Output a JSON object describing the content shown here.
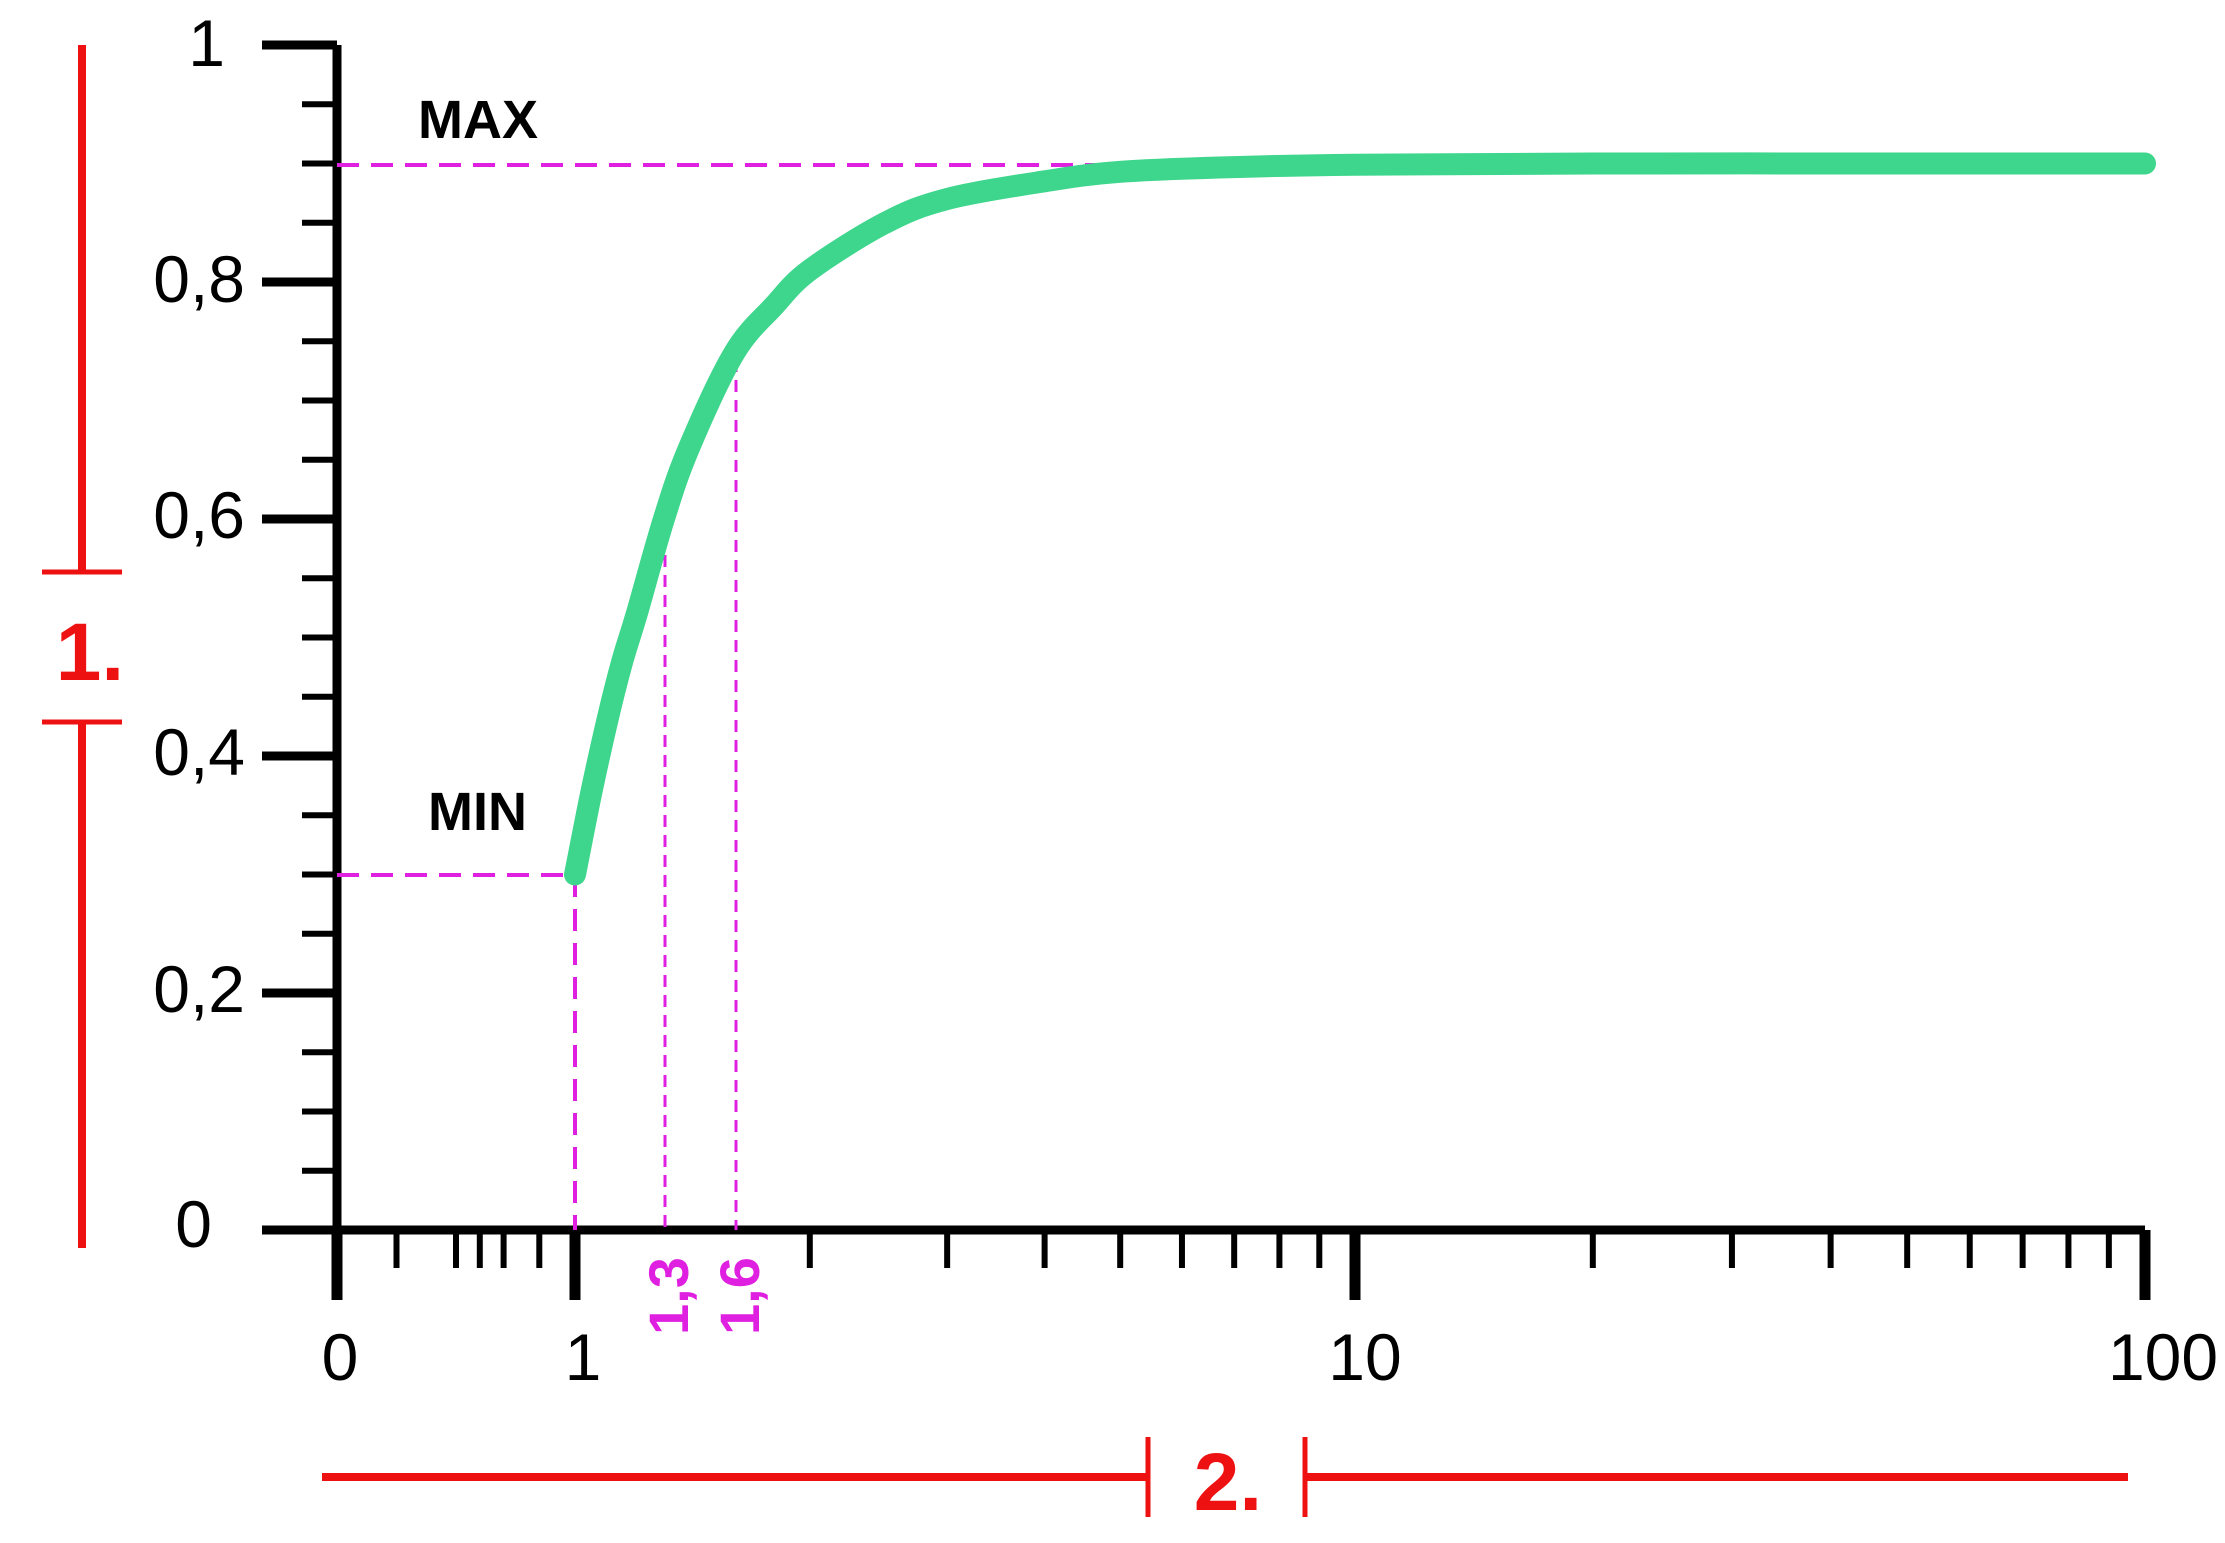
{
  "chart_data": {
    "type": "line",
    "xscale": "log",
    "xlim": [
      0,
      100
    ],
    "ylim": [
      0,
      1
    ],
    "x_tick_labels": [
      "0",
      "1",
      "10",
      "100"
    ],
    "y_tick_labels": [
      "0",
      "0,2",
      "0,4",
      "0,6",
      "0,8",
      "1"
    ],
    "y_ticks": [
      0,
      0.2,
      0.4,
      0.6,
      0.8,
      1.0
    ],
    "x_ticks": [
      0,
      1,
      10,
      100
    ],
    "series": [
      {
        "color": "#3dd68c",
        "points": [
          [
            1.0,
            0.3
          ],
          [
            1.05,
            0.37
          ],
          [
            1.1,
            0.43
          ],
          [
            1.15,
            0.48
          ],
          [
            1.2,
            0.52
          ],
          [
            1.3,
            0.6
          ],
          [
            1.4,
            0.66
          ],
          [
            1.6,
            0.74
          ],
          [
            1.8,
            0.78
          ],
          [
            2.0,
            0.81
          ],
          [
            2.5,
            0.85
          ],
          [
            3.0,
            0.87
          ],
          [
            4.0,
            0.885
          ],
          [
            5.0,
            0.893
          ],
          [
            7.0,
            0.897
          ],
          [
            10,
            0.899
          ],
          [
            20,
            0.9
          ],
          [
            50,
            0.9
          ],
          [
            100,
            0.9
          ]
        ]
      }
    ],
    "reference_levels": [
      {
        "label": "MAX",
        "y": 0.9
      },
      {
        "label": "MIN",
        "y": 0.3
      }
    ],
    "markers": [
      {
        "label": "1,3",
        "x": 1.3,
        "y": 0.62
      },
      {
        "label": "1,6",
        "x": 1.6,
        "y": 0.74
      }
    ],
    "min_point": {
      "x": 1.0,
      "y": 0.3
    },
    "brackets": [
      {
        "label": "1.",
        "axis": "y"
      },
      {
        "label": "2.",
        "axis": "x"
      }
    ],
    "colors": {
      "curve": "#3dd68c",
      "guides": "#e020e0",
      "brackets": "#ee1111",
      "axis": "#000000"
    },
    "grid": false
  }
}
